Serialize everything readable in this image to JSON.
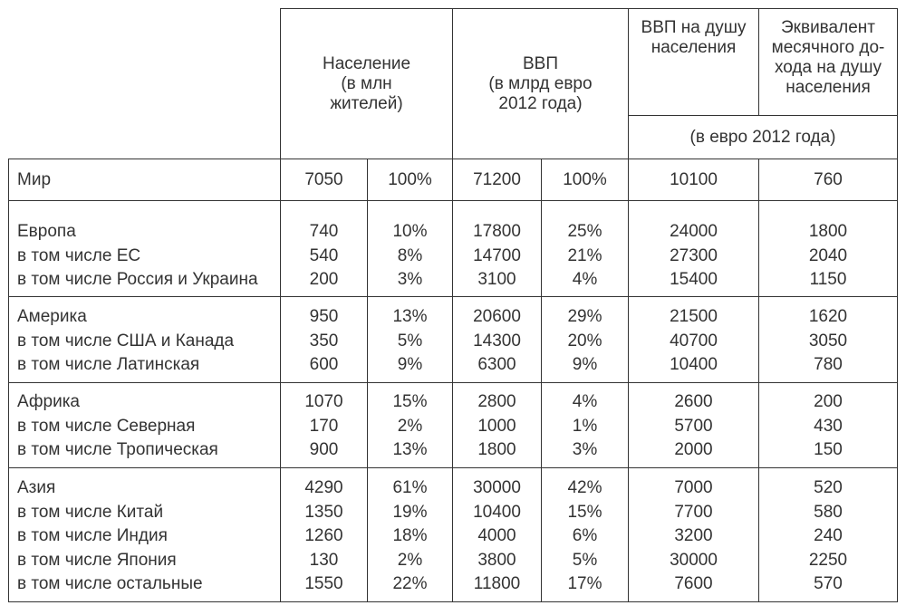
{
  "header": {
    "population": [
      "Население",
      "(в млн",
      "жителей)"
    ],
    "gdp": [
      "ВВП",
      "(в млрд евро",
      "2012 года)"
    ],
    "gdp_per_capita": [
      "ВВП на душу",
      "населения"
    ],
    "monthly_income": [
      "Эквивалент",
      "месячного до-",
      "хода на душу",
      "населения"
    ],
    "currency_note": "(в евро 2012 года)"
  },
  "world": {
    "name": "Мир",
    "pop": "7050",
    "pop_pct": "100%",
    "gdp": "71200",
    "gdp_pct": "100%",
    "gdp_pc": "10100",
    "income": "760"
  },
  "groups": [
    {
      "rows": [
        {
          "name": "Европа",
          "pop": "740",
          "pop_pct": "10%",
          "gdp": "17800",
          "gdp_pct": "25%",
          "gdp_pc": "24000",
          "income": "1800"
        },
        {
          "name": "в том числе ЕС",
          "pop": "540",
          "pop_pct": "8%",
          "gdp": "14700",
          "gdp_pct": "21%",
          "gdp_pc": "27300",
          "income": "2040"
        },
        {
          "name": "в том числе Россия и Украина",
          "pop": "200",
          "pop_pct": "3%",
          "gdp": "3100",
          "gdp_pct": "4%",
          "gdp_pc": "15400",
          "income": "1150"
        }
      ]
    },
    {
      "rows": [
        {
          "name": "Америка",
          "pop": "950",
          "pop_pct": "13%",
          "gdp": "20600",
          "gdp_pct": "29%",
          "gdp_pc": "21500",
          "income": "1620"
        },
        {
          "name": "в том числе США и Канада",
          "pop": "350",
          "pop_pct": "5%",
          "gdp": "14300",
          "gdp_pct": "20%",
          "gdp_pc": "40700",
          "income": "3050"
        },
        {
          "name": "в том числе Латинская",
          "pop": "600",
          "pop_pct": "9%",
          "gdp": "6300",
          "gdp_pct": "9%",
          "gdp_pc": "10400",
          "income": "780"
        }
      ]
    },
    {
      "rows": [
        {
          "name": "Африка",
          "pop": "1070",
          "pop_pct": "15%",
          "gdp": "2800",
          "gdp_pct": "4%",
          "gdp_pc": "2600",
          "income": "200"
        },
        {
          "name": "в том числе Северная",
          "pop": "170",
          "pop_pct": "2%",
          "gdp": "1000",
          "gdp_pct": "1%",
          "gdp_pc": "5700",
          "income": "430"
        },
        {
          "name": "в том числе Тропическая",
          "pop": "900",
          "pop_pct": "13%",
          "gdp": "1800",
          "gdp_pct": "3%",
          "gdp_pc": "2000",
          "income": "150"
        }
      ]
    },
    {
      "rows": [
        {
          "name": "Азия",
          "pop": "4290",
          "pop_pct": "61%",
          "gdp": "30000",
          "gdp_pct": "42%",
          "gdp_pc": "7000",
          "income": "520"
        },
        {
          "name": "в том числе Китай",
          "pop": "1350",
          "pop_pct": "19%",
          "gdp": "10400",
          "gdp_pct": "15%",
          "gdp_pc": "7700",
          "income": "580"
        },
        {
          "name": "в том числе Индия",
          "pop": "1260",
          "pop_pct": "18%",
          "gdp": "4000",
          "gdp_pct": "6%",
          "gdp_pc": "3200",
          "income": "240"
        },
        {
          "name": "в том числе Япония",
          "pop": "130",
          "pop_pct": "2%",
          "gdp": "3800",
          "gdp_pct": "5%",
          "gdp_pc": "30000",
          "income": "2250"
        },
        {
          "name": "в том числе остальные",
          "pop": "1550",
          "pop_pct": "22%",
          "gdp": "11800",
          "gdp_pct": "17%",
          "gdp_pc": "7600",
          "income": "570"
        }
      ]
    }
  ]
}
